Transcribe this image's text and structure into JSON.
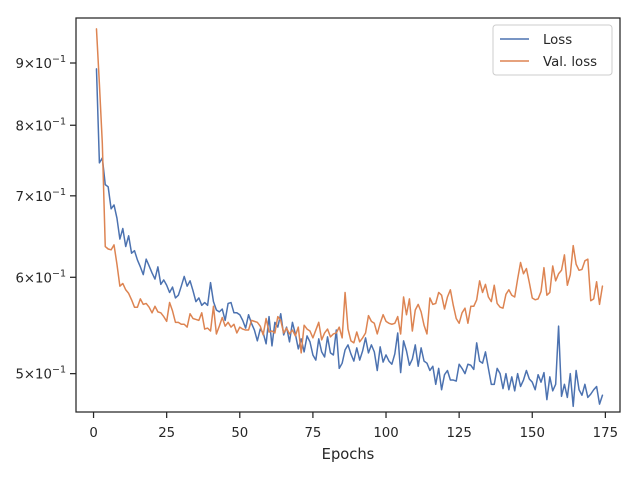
{
  "chart_data": {
    "type": "line",
    "title": "",
    "xlabel": "Epochs",
    "ylabel": "",
    "xlim": [
      -6,
      180
    ],
    "ylim": [
      0.465,
      0.98
    ],
    "yscale": "log",
    "grid": false,
    "legend_position": "top-right",
    "xticks": [
      0,
      25,
      50,
      75,
      100,
      125,
      150,
      175
    ],
    "xtick_labels": [
      "0",
      "25",
      "50",
      "75",
      "100",
      "125",
      "150",
      "175"
    ],
    "yticks": [
      0.5,
      0.6,
      0.7,
      0.8,
      0.9
    ],
    "ytick_labels": [
      {
        "mantissa": "5",
        "exponent": "−1"
      },
      {
        "mantissa": "6",
        "exponent": "−1"
      },
      {
        "mantissa": "7",
        "exponent": "−1"
      },
      {
        "mantissa": "8",
        "exponent": "−1"
      },
      {
        "mantissa": "9",
        "exponent": "−1"
      }
    ],
    "series": [
      {
        "name": "Loss",
        "color": "#4c72b0",
        "x_start": 1,
        "values": [
          0.89,
          0.745,
          0.752,
          0.715,
          0.712,
          0.683,
          0.688,
          0.671,
          0.645,
          0.658,
          0.636,
          0.649,
          0.628,
          0.631,
          0.62,
          0.612,
          0.603,
          0.621,
          0.613,
          0.605,
          0.598,
          0.612,
          0.592,
          0.597,
          0.591,
          0.583,
          0.589,
          0.577,
          0.58,
          0.59,
          0.601,
          0.59,
          0.596,
          0.585,
          0.573,
          0.577,
          0.569,
          0.572,
          0.569,
          0.594,
          0.573,
          0.564,
          0.562,
          0.565,
          0.553,
          0.571,
          0.572,
          0.561,
          0.561,
          0.559,
          0.553,
          0.545,
          0.559,
          0.55,
          0.543,
          0.532,
          0.544,
          0.54,
          0.529,
          0.557,
          0.527,
          0.551,
          0.546,
          0.56,
          0.538,
          0.546,
          0.531,
          0.551,
          0.539,
          0.524,
          0.534,
          0.521,
          0.537,
          0.531,
          0.518,
          0.513,
          0.534,
          0.521,
          0.516,
          0.536,
          0.52,
          0.518,
          0.543,
          0.505,
          0.51,
          0.523,
          0.528,
          0.519,
          0.512,
          0.525,
          0.513,
          0.522,
          0.535,
          0.52,
          0.528,
          0.521,
          0.503,
          0.526,
          0.511,
          0.518,
          0.512,
          0.509,
          0.519,
          0.54,
          0.501,
          0.532,
          0.522,
          0.508,
          0.514,
          0.528,
          0.507,
          0.525,
          0.512,
          0.51,
          0.503,
          0.507,
          0.49,
          0.505,
          0.485,
          0.499,
          0.503,
          0.494,
          0.494,
          0.493,
          0.509,
          0.505,
          0.5,
          0.509,
          0.508,
          0.504,
          0.53,
          0.512,
          0.51,
          0.521,
          0.505,
          0.49,
          0.49,
          0.505,
          0.5,
          0.486,
          0.5,
          0.485,
          0.497,
          0.484,
          0.5,
          0.488,
          0.494,
          0.503,
          0.495,
          0.492,
          0.485,
          0.499,
          0.492,
          0.501,
          0.476,
          0.497,
          0.484,
          0.49,
          0.547,
          0.479,
          0.49,
          0.478,
          0.5,
          0.47,
          0.503,
          0.485,
          0.48,
          0.49,
          0.478,
          0.481,
          0.485,
          0.488,
          0.472,
          0.48
        ]
      },
      {
        "name": "Val. loss",
        "color": "#dd8452",
        "x_start": 1,
        "values": [
          0.96,
          0.865,
          0.773,
          0.636,
          0.633,
          0.632,
          0.638,
          0.615,
          0.59,
          0.593,
          0.586,
          0.582,
          0.575,
          0.567,
          0.567,
          0.576,
          0.57,
          0.571,
          0.567,
          0.561,
          0.568,
          0.562,
          0.561,
          0.557,
          0.552,
          0.572,
          0.563,
          0.551,
          0.551,
          0.549,
          0.549,
          0.546,
          0.56,
          0.555,
          0.554,
          0.553,
          0.561,
          0.544,
          0.545,
          0.542,
          0.568,
          0.539,
          0.547,
          0.556,
          0.547,
          0.551,
          0.546,
          0.549,
          0.54,
          0.546,
          0.544,
          0.543,
          0.543,
          0.553,
          0.552,
          0.551,
          0.547,
          0.538,
          0.555,
          0.541,
          0.542,
          0.54,
          0.557,
          0.553,
          0.54,
          0.545,
          0.539,
          0.543,
          0.537,
          0.546,
          0.52,
          0.548,
          0.544,
          0.542,
          0.535,
          0.543,
          0.551,
          0.533,
          0.54,
          0.544,
          0.536,
          0.539,
          0.54,
          0.546,
          0.535,
          0.583,
          0.544,
          0.532,
          0.53,
          0.541,
          0.531,
          0.535,
          0.54,
          0.558,
          0.552,
          0.55,
          0.539,
          0.55,
          0.559,
          0.552,
          0.55,
          0.549,
          0.55,
          0.557,
          0.539,
          0.578,
          0.559,
          0.576,
          0.542,
          0.564,
          0.57,
          0.562,
          0.548,
          0.539,
          0.577,
          0.57,
          0.571,
          0.583,
          0.58,
          0.565,
          0.578,
          0.586,
          0.569,
          0.555,
          0.55,
          0.561,
          0.566,
          0.55,
          0.568,
          0.568,
          0.575,
          0.596,
          0.583,
          0.592,
          0.578,
          0.573,
          0.591,
          0.571,
          0.567,
          0.566,
          0.581,
          0.586,
          0.58,
          0.578,
          0.598,
          0.617,
          0.604,
          0.61,
          0.594,
          0.577,
          0.575,
          0.576,
          0.584,
          0.611,
          0.58,
          0.583,
          0.613,
          0.596,
          0.604,
          0.608,
          0.626,
          0.591,
          0.603,
          0.637,
          0.615,
          0.608,
          0.609,
          0.619,
          0.621,
          0.574,
          0.576,
          0.595,
          0.57,
          0.59
        ]
      }
    ]
  }
}
